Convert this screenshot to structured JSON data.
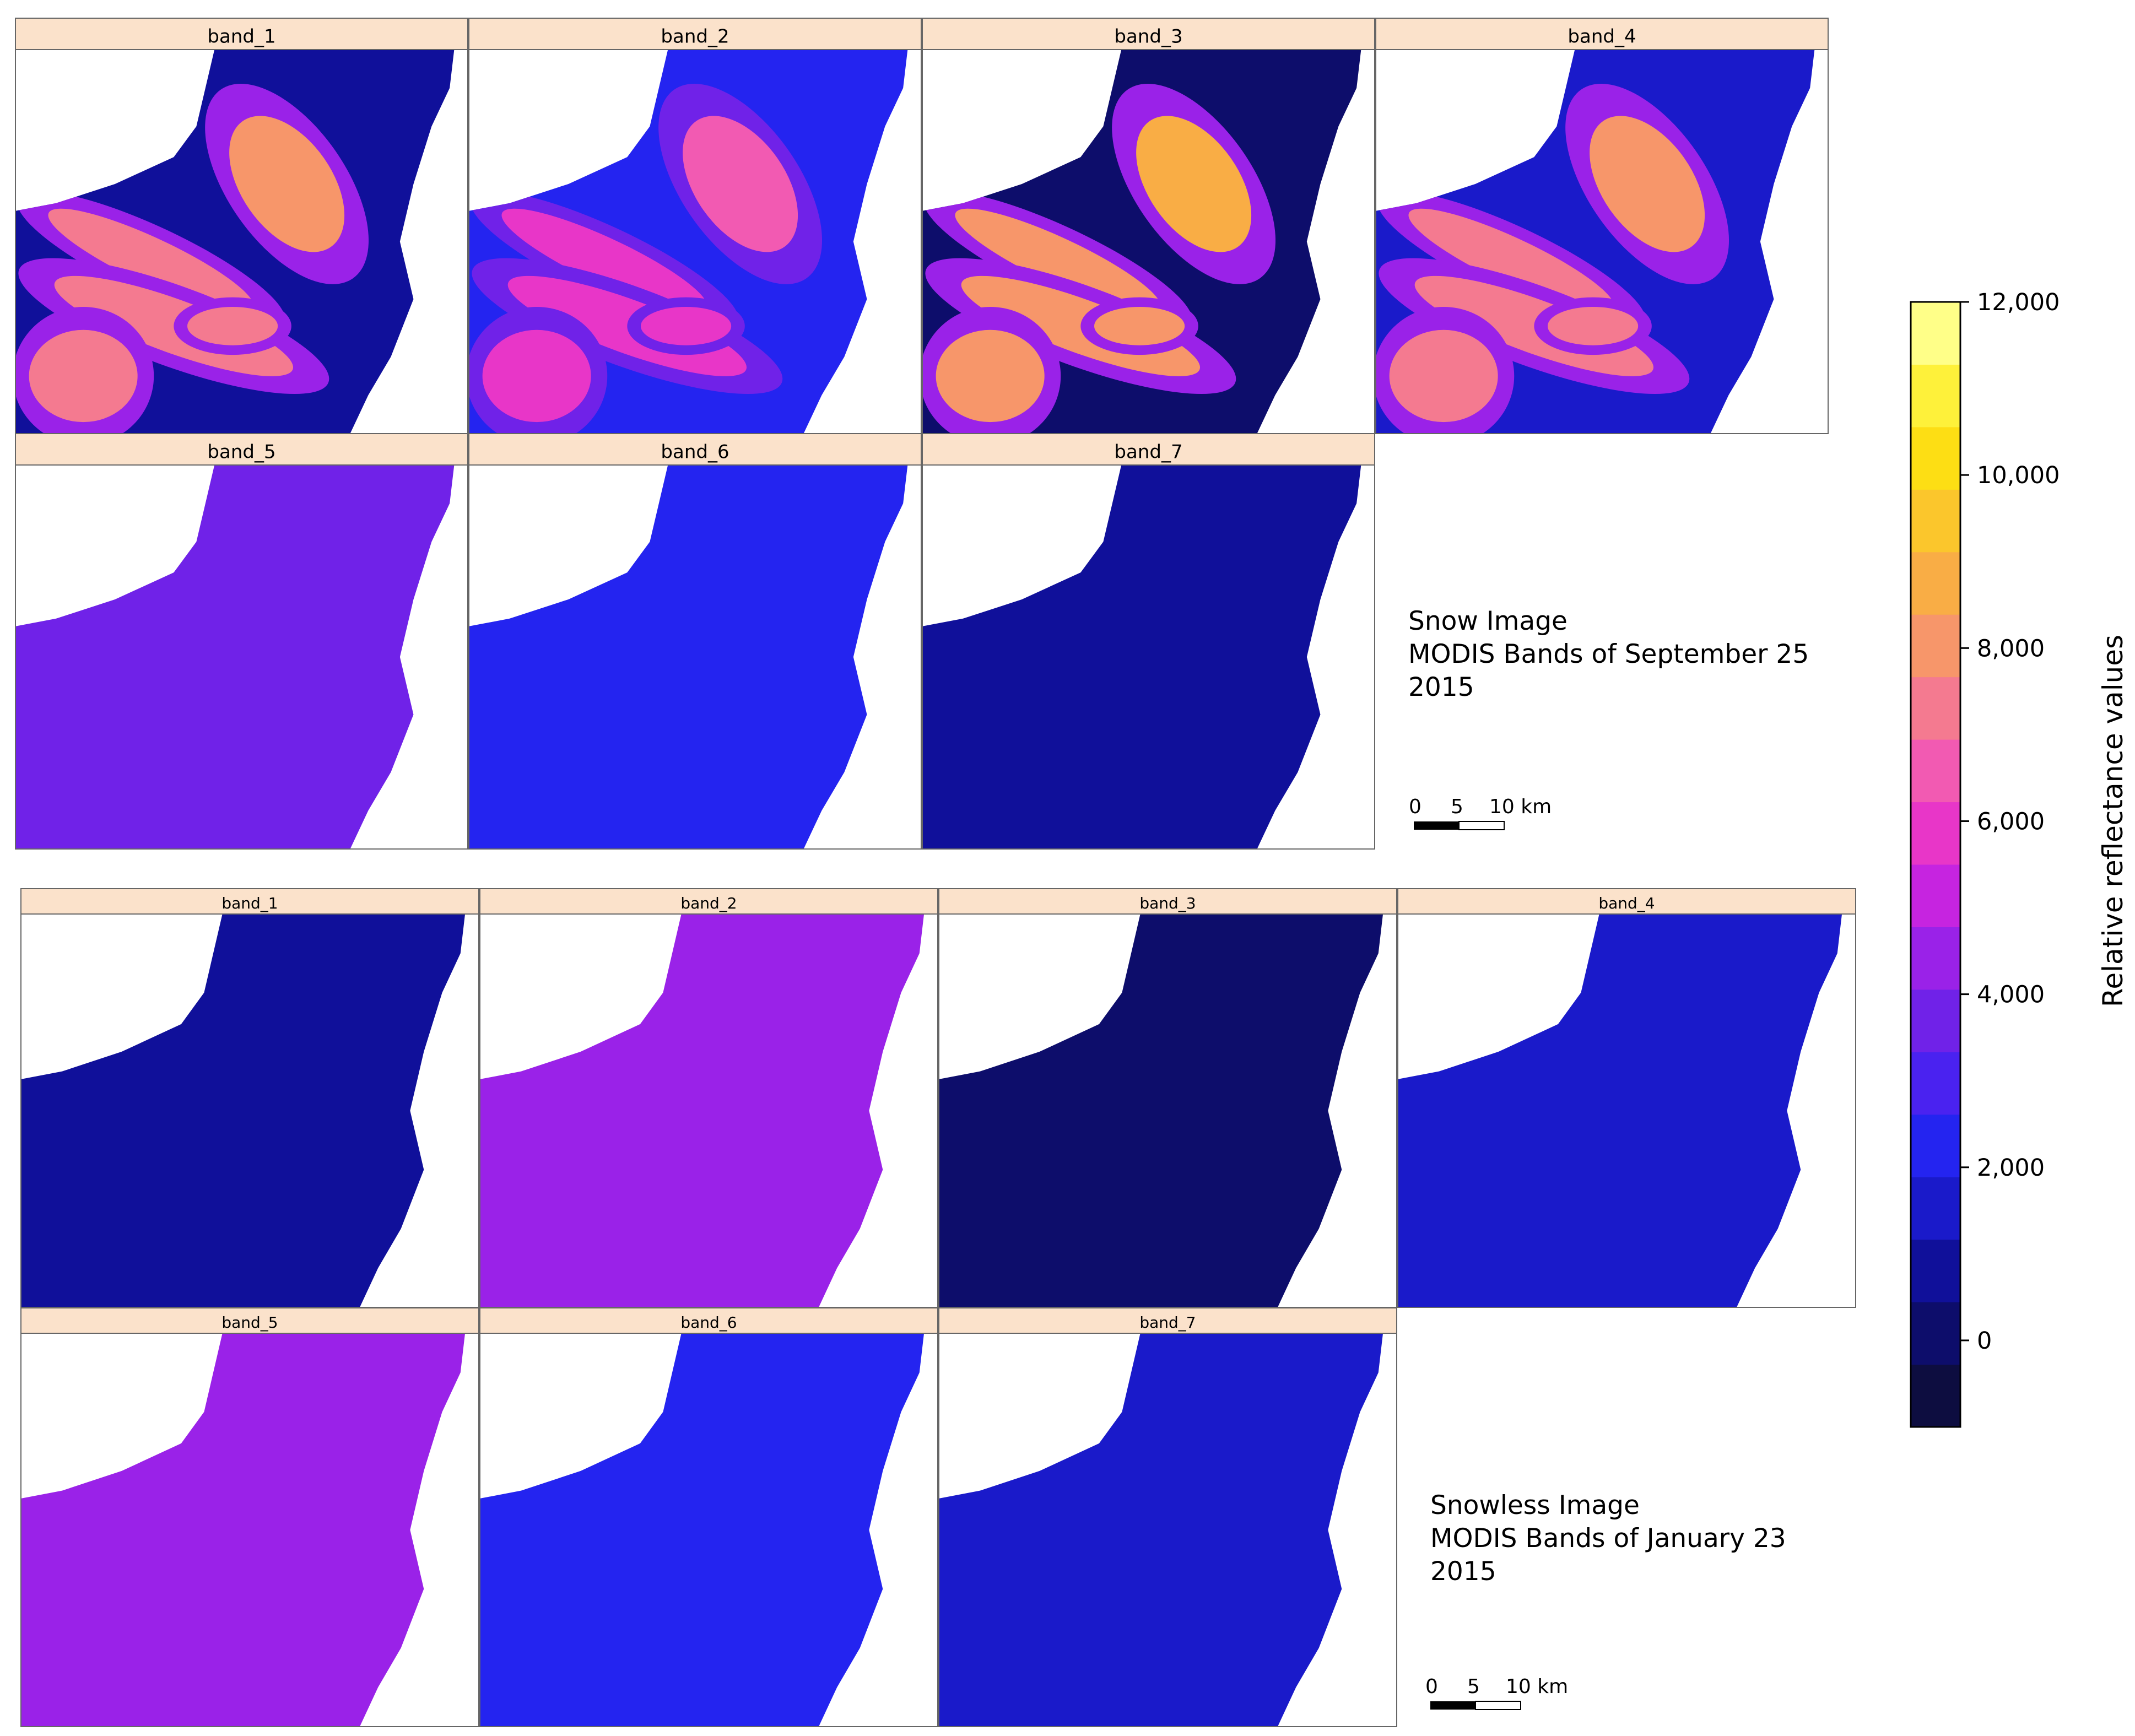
{
  "groups": [
    {
      "id": "snow",
      "panels": [
        "band_1",
        "band_2",
        "band_3",
        "band_4",
        "band_5",
        "band_6",
        "band_7"
      ],
      "caption": [
        "Snow Image",
        "MODIS Bands of September 25",
        "2015"
      ],
      "scalebar": {
        "labels": [
          "0",
          "5",
          "10 km"
        ]
      },
      "band_levels": [
        {
          "band": "band_1",
          "snow": 8000,
          "base": 800
        },
        {
          "band": "band_2",
          "snow": 6500,
          "base": 2600
        },
        {
          "band": "band_3",
          "snow": 8500,
          "base": 400
        },
        {
          "band": "band_4",
          "snow": 7800,
          "base": 1700
        },
        {
          "band": "band_5",
          "snow": 0,
          "base": 3400
        },
        {
          "band": "band_6",
          "snow": 0,
          "base": 2300
        },
        {
          "band": "band_7",
          "snow": 0,
          "base": 900
        }
      ]
    },
    {
      "id": "snowless",
      "panels": [
        "band_1",
        "band_2",
        "band_3",
        "band_4",
        "band_5",
        "band_6",
        "band_7"
      ],
      "caption": [
        "Snowless Image",
        "MODIS Bands of January 23",
        "2015"
      ],
      "scalebar": {
        "labels": [
          "0",
          "5",
          "10 km"
        ]
      },
      "band_levels": [
        {
          "band": "band_1",
          "snow": 0,
          "base": 500
        },
        {
          "band": "band_2",
          "snow": 0,
          "base": 4200
        },
        {
          "band": "band_3",
          "snow": 0,
          "base": 300
        },
        {
          "band": "band_4",
          "snow": 0,
          "base": 1400
        },
        {
          "band": "band_5",
          "snow": 0,
          "base": 4600
        },
        {
          "band": "band_6",
          "snow": 0,
          "base": 2600
        },
        {
          "band": "band_7",
          "snow": 0,
          "base": 1200
        }
      ]
    }
  ],
  "colorbar": {
    "title": "Relative reflectance values",
    "ticks": [
      "12,000",
      "10,000",
      "8,000",
      "6,000",
      "4,000",
      "2,000",
      "0"
    ],
    "tick_values": [
      12000,
      10000,
      8000,
      6000,
      4000,
      2000,
      0
    ],
    "range": [
      -1000,
      12000
    ],
    "colors": [
      "#0d0d40",
      "#0d0d6b",
      "#10109a",
      "#1a1aca",
      "#2424f0",
      "#4a22f0",
      "#7022e8",
      "#9a22e8",
      "#c624e0",
      "#e836c8",
      "#f25ab2",
      "#f47a90",
      "#f7966a",
      "#f9ad45",
      "#fbc62c",
      "#fdde14",
      "#fef13a",
      "#ffff88"
    ]
  },
  "colors": {
    "strip": "#fbe2cb",
    "panel_border": "#666666",
    "background": "#ffffff"
  }
}
